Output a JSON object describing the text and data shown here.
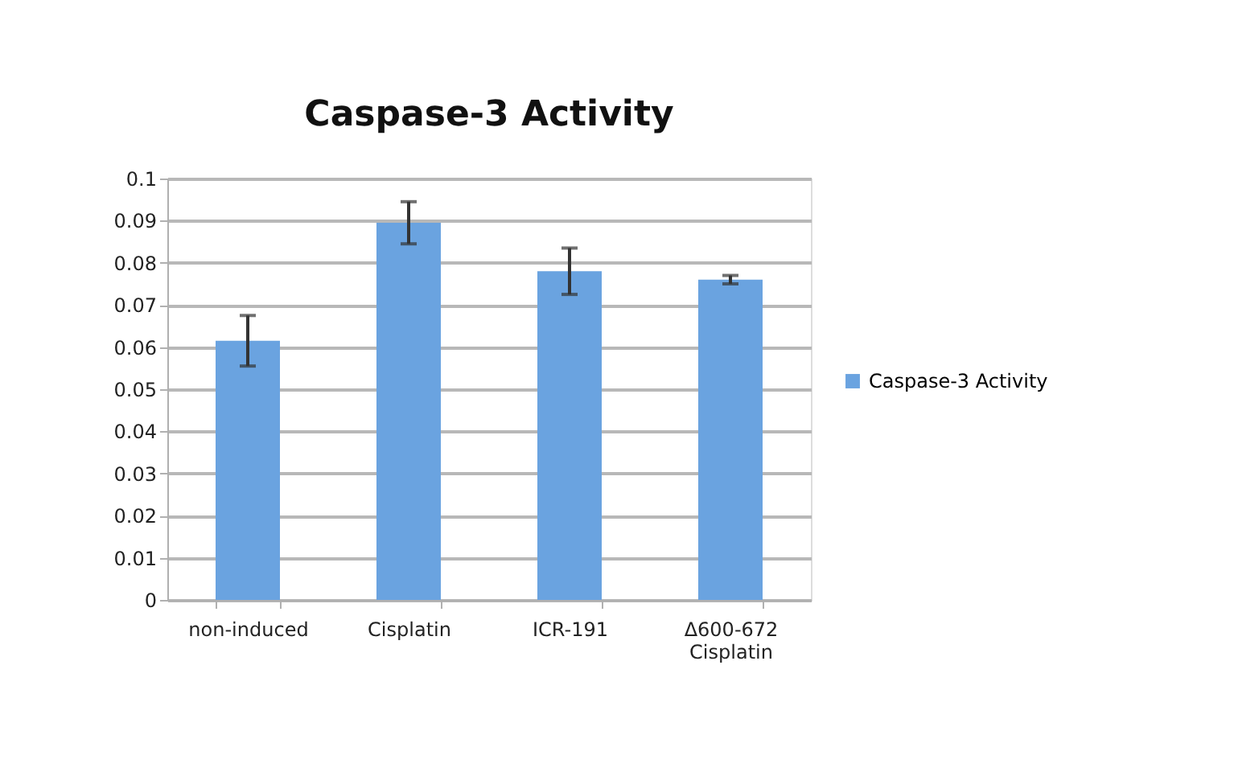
{
  "chart_data": {
    "type": "bar",
    "title": "Caspase-3 Activity",
    "categories": [
      "non-induced",
      "Cisplatin",
      "ICR-191",
      "Δ600-672 Cisplatin"
    ],
    "series": [
      {
        "name": "Caspase-3 Activity",
        "color": "#6aa3e0",
        "values": [
          0.0615,
          0.0895,
          0.078,
          0.076
        ],
        "errors": [
          0.006,
          0.005,
          0.0055,
          0.001
        ]
      }
    ],
    "ylim": [
      0,
      0.1
    ],
    "yticks": [
      0,
      0.01,
      0.02,
      0.03,
      0.04,
      0.05,
      0.06,
      0.07,
      0.08,
      0.09,
      0.1
    ],
    "grid": "y",
    "legend": "right"
  }
}
